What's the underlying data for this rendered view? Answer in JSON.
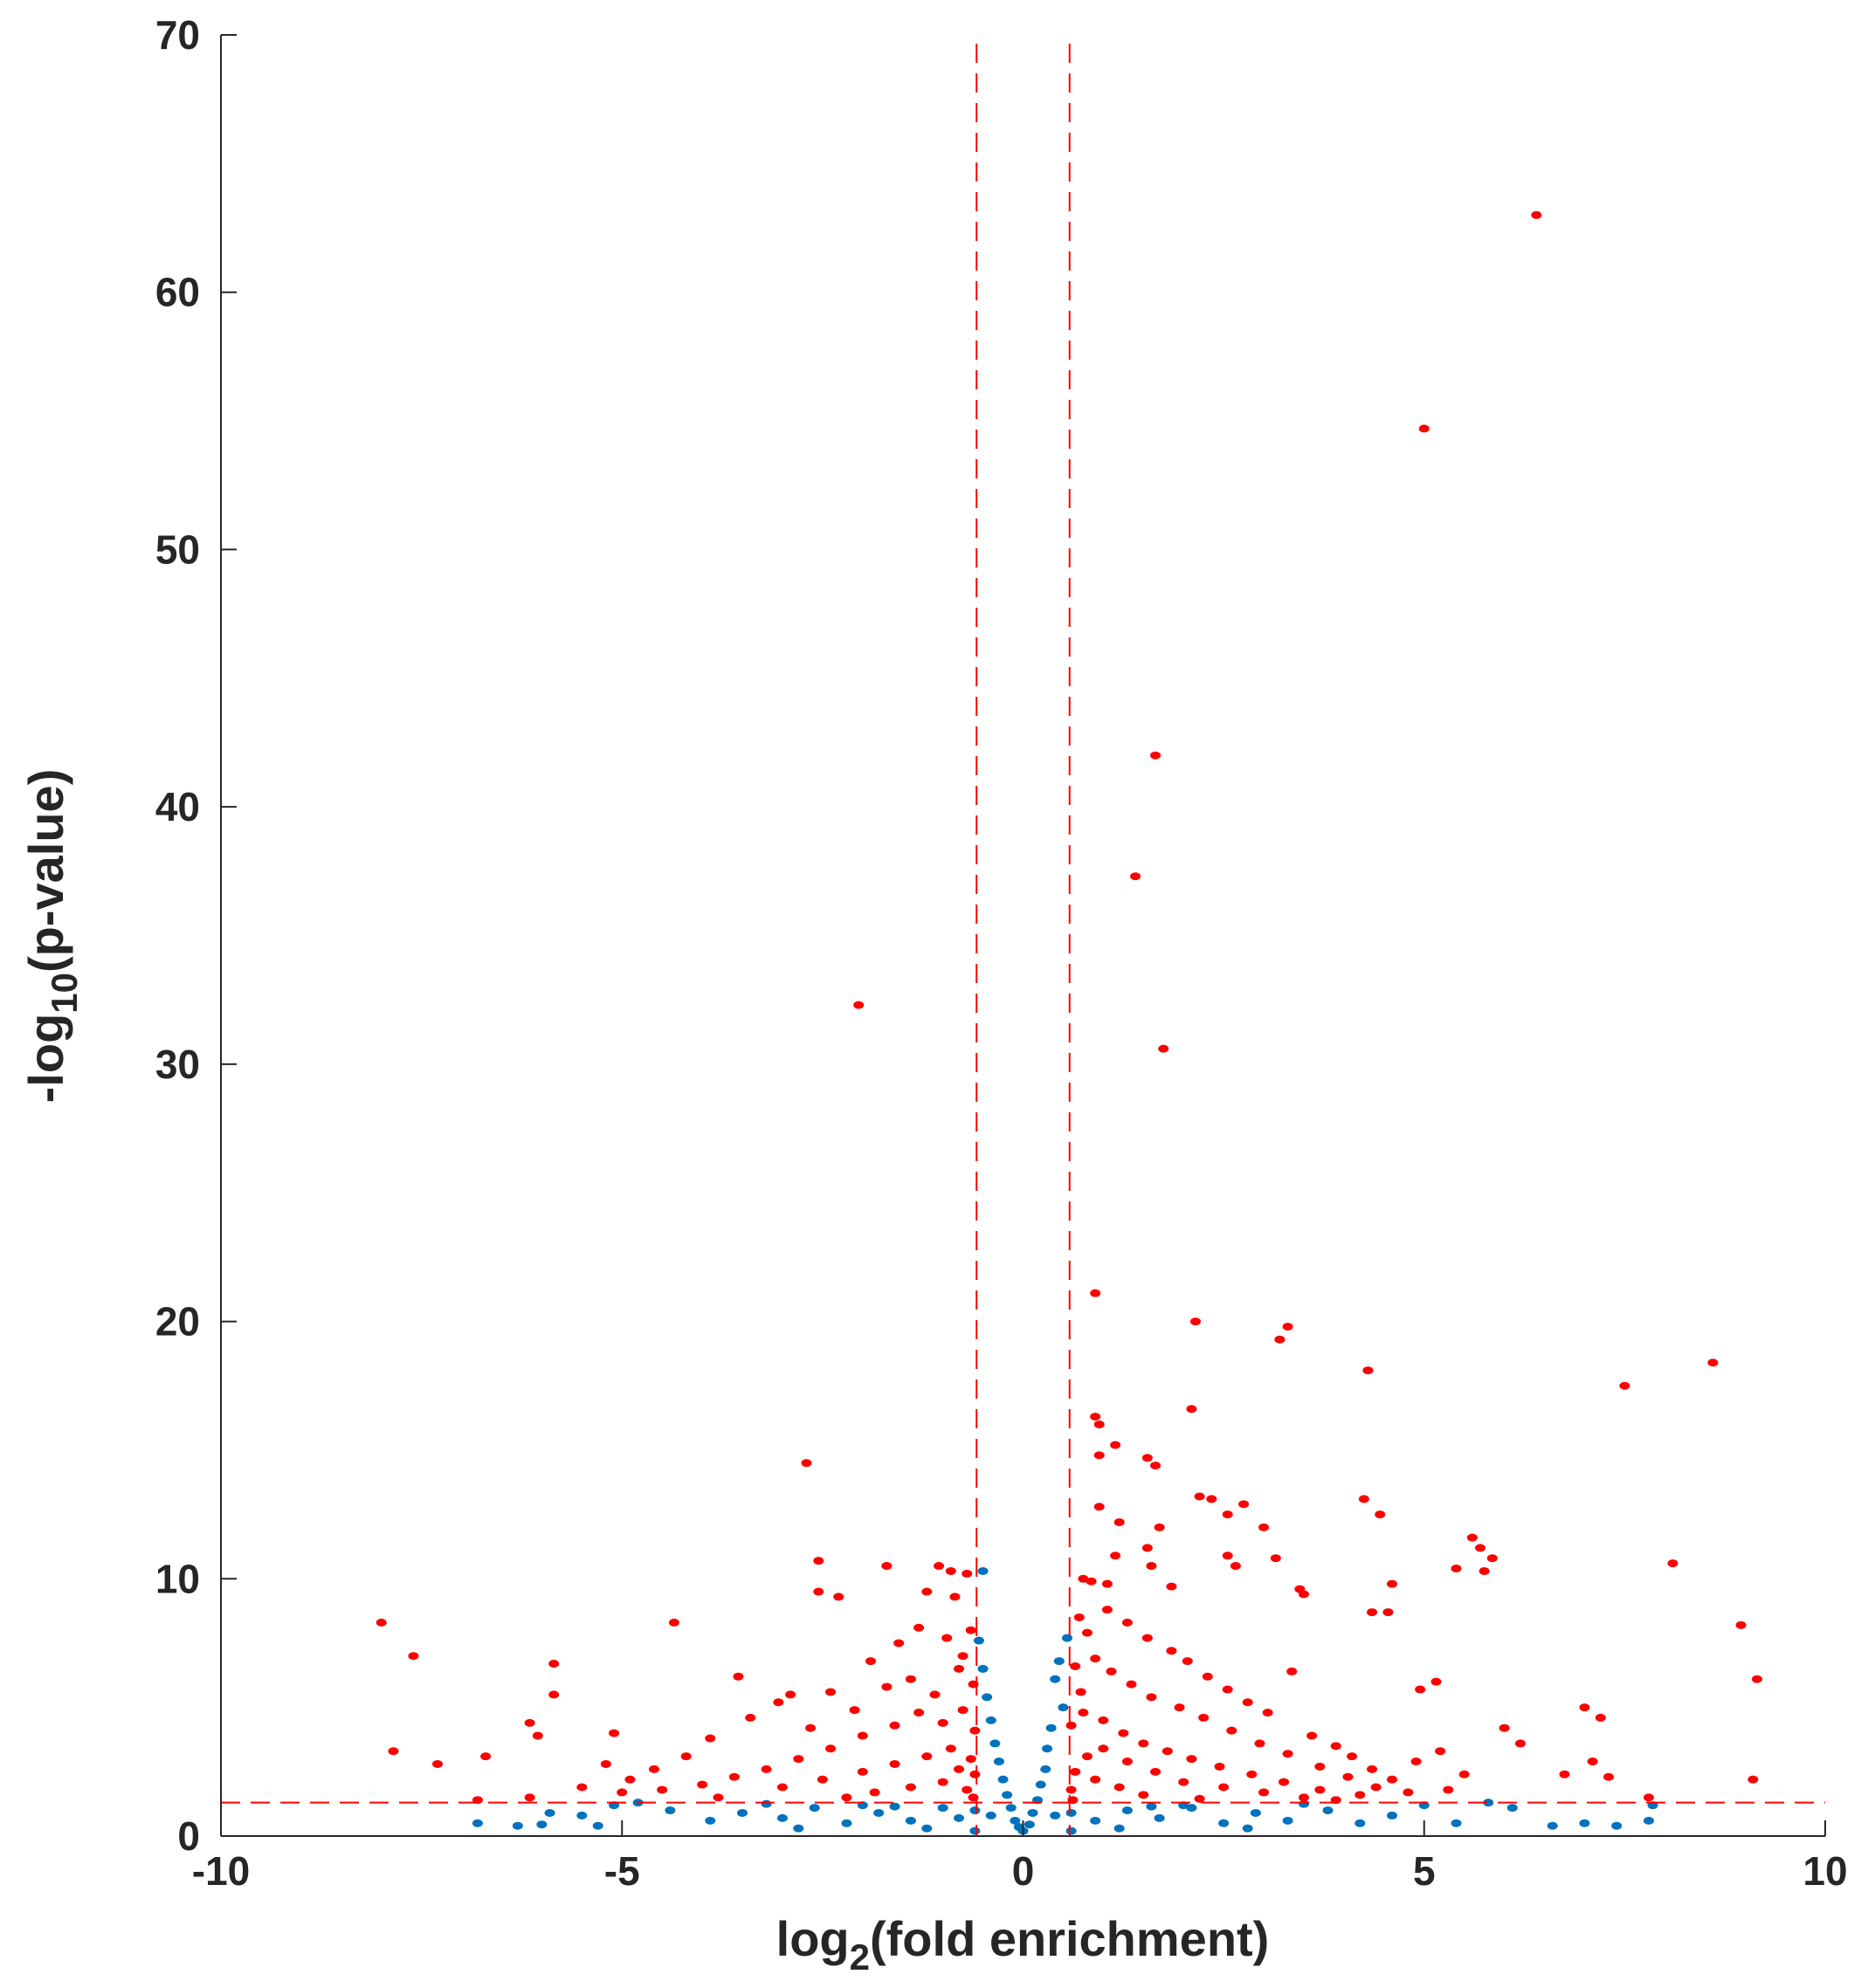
{
  "chart_data": {
    "type": "scatter",
    "title": "",
    "xlabel": {
      "main": "log",
      "sub": "2",
      "rest": "(fold enrichment)"
    },
    "ylabel": {
      "main": "-log",
      "sub": "10",
      "rest": "(p-value)"
    },
    "xlim": [
      -10,
      10
    ],
    "ylim": [
      0,
      70
    ],
    "x_ticks": [
      -10,
      -5,
      0,
      5,
      10
    ],
    "x_tick_labels": [
      "-10",
      "-5",
      "0",
      "5",
      "10"
    ],
    "y_ticks": [
      0,
      10,
      20,
      30,
      40,
      50,
      60,
      70
    ],
    "y_tick_labels": [
      "0",
      "10",
      "20",
      "30",
      "40",
      "50",
      "60",
      "70"
    ],
    "grid": false,
    "thresholds": {
      "x": [
        -0.58,
        0.58
      ],
      "y": [
        1.3
      ]
    },
    "colors": {
      "significant": "#ff0000",
      "not_significant": "#0072bd",
      "axis": "#262626"
    },
    "series": [
      {
        "color": "#ff0000",
        "points": [
          [
            6.4,
            63.0
          ],
          [
            5.0,
            54.7
          ],
          [
            1.65,
            42.0
          ],
          [
            1.4,
            37.3
          ],
          [
            -2.05,
            32.3
          ],
          [
            1.75,
            30.6
          ],
          [
            0.9,
            21.1
          ],
          [
            2.15,
            20.0
          ],
          [
            3.3,
            19.8
          ],
          [
            3.2,
            19.3
          ],
          [
            8.6,
            18.4
          ],
          [
            4.3,
            18.1
          ],
          [
            7.5,
            17.5
          ],
          [
            2.1,
            16.6
          ],
          [
            0.9,
            16.3
          ],
          [
            0.95,
            16.0
          ],
          [
            1.15,
            15.2
          ],
          [
            0.95,
            14.8
          ],
          [
            1.55,
            14.7
          ],
          [
            1.65,
            14.4
          ],
          [
            -2.7,
            14.5
          ],
          [
            2.2,
            13.2
          ],
          [
            2.35,
            13.1
          ],
          [
            4.25,
            13.1
          ],
          [
            2.75,
            12.9
          ],
          [
            0.95,
            12.8
          ],
          [
            2.55,
            12.5
          ],
          [
            4.45,
            12.5
          ],
          [
            1.2,
            12.2
          ],
          [
            1.7,
            12.0
          ],
          [
            3.0,
            12.0
          ],
          [
            5.6,
            11.6
          ],
          [
            5.7,
            11.2
          ],
          [
            5.85,
            10.8
          ],
          [
            5.75,
            10.3
          ],
          [
            5.4,
            10.4
          ],
          [
            8.1,
            10.6
          ],
          [
            3.15,
            10.8
          ],
          [
            2.55,
            10.9
          ],
          [
            2.65,
            10.5
          ],
          [
            1.55,
            11.2
          ],
          [
            1.6,
            10.5
          ],
          [
            1.15,
            10.9
          ],
          [
            -2.55,
            10.7
          ],
          [
            -1.7,
            10.5
          ],
          [
            -1.05,
            10.5
          ],
          [
            -0.9,
            10.3
          ],
          [
            -0.7,
            10.2
          ],
          [
            0.75,
            10.0
          ],
          [
            0.85,
            9.9
          ],
          [
            1.05,
            9.8
          ],
          [
            1.85,
            9.7
          ],
          [
            3.45,
            9.6
          ],
          [
            3.5,
            9.4
          ],
          [
            4.6,
            9.8
          ],
          [
            -2.55,
            9.5
          ],
          [
            -2.3,
            9.3
          ],
          [
            -1.2,
            9.5
          ],
          [
            -0.85,
            9.3
          ],
          [
            4.35,
            8.7
          ],
          [
            4.55,
            8.7
          ],
          [
            8.95,
            8.2
          ],
          [
            -8.0,
            8.3
          ],
          [
            -4.35,
            8.3
          ],
          [
            -7.6,
            7.0
          ],
          [
            9.15,
            6.1
          ],
          [
            5.15,
            6.0
          ],
          [
            4.95,
            5.7
          ],
          [
            -5.85,
            6.7
          ],
          [
            -5.85,
            5.5
          ],
          [
            -7.85,
            3.3
          ],
          [
            -7.3,
            2.8
          ],
          [
            -6.7,
            3.1
          ],
          [
            -6.15,
            4.4
          ],
          [
            -6.05,
            3.9
          ],
          [
            -5.1,
            4.0
          ],
          [
            -6.8,
            1.4
          ],
          [
            -6.15,
            1.5
          ],
          [
            7.0,
            5.0
          ],
          [
            7.2,
            4.6
          ],
          [
            6.0,
            4.2
          ],
          [
            6.2,
            3.6
          ],
          [
            7.1,
            2.9
          ],
          [
            7.3,
            2.3
          ],
          [
            7.8,
            1.5
          ],
          [
            9.1,
            2.2
          ],
          [
            6.75,
            2.4
          ],
          [
            -3.55,
            6.2
          ],
          [
            -3.05,
            5.2
          ],
          [
            -2.4,
            5.6
          ],
          [
            -1.9,
            6.8
          ],
          [
            -1.55,
            7.5
          ],
          [
            -1.3,
            8.1
          ],
          [
            -0.95,
            7.7
          ],
          [
            -0.75,
            7.0
          ],
          [
            -0.65,
            8.0
          ],
          [
            0.7,
            8.5
          ],
          [
            0.8,
            7.9
          ],
          [
            1.05,
            8.8
          ],
          [
            1.3,
            8.3
          ],
          [
            1.55,
            7.7
          ],
          [
            1.85,
            7.2
          ],
          [
            2.05,
            6.8
          ],
          [
            2.3,
            6.2
          ],
          [
            2.55,
            5.7
          ],
          [
            2.8,
            5.2
          ],
          [
            3.05,
            4.8
          ],
          [
            3.35,
            6.4
          ],
          [
            3.6,
            3.9
          ],
          [
            3.9,
            3.5
          ],
          [
            4.1,
            3.1
          ],
          [
            4.35,
            2.6
          ],
          [
            4.6,
            2.2
          ],
          [
            4.9,
            2.9
          ],
          [
            5.2,
            3.3
          ],
          [
            5.5,
            2.4
          ],
          [
            -3.9,
            3.8
          ],
          [
            -4.2,
            3.1
          ],
          [
            -4.6,
            2.6
          ],
          [
            -4.9,
            2.2
          ],
          [
            -5.2,
            2.8
          ],
          [
            -3.4,
            4.6
          ],
          [
            -2.9,
            5.5
          ],
          [
            -2.65,
            4.2
          ],
          [
            -2.1,
            4.9
          ],
          [
            -1.7,
            5.8
          ],
          [
            -1.4,
            6.1
          ],
          [
            -1.1,
            5.5
          ],
          [
            -0.8,
            6.5
          ],
          [
            -0.62,
            5.9
          ],
          [
            0.65,
            6.6
          ],
          [
            0.72,
            5.6
          ],
          [
            0.9,
            6.9
          ],
          [
            1.1,
            6.4
          ],
          [
            1.35,
            5.9
          ],
          [
            1.6,
            5.4
          ],
          [
            1.95,
            5.0
          ],
          [
            2.25,
            4.6
          ],
          [
            2.6,
            4.1
          ],
          [
            2.95,
            3.6
          ],
          [
            3.3,
            3.2
          ],
          [
            3.7,
            2.7
          ],
          [
            4.05,
            2.3
          ],
          [
            4.4,
            1.9
          ],
          [
            4.8,
            1.7
          ],
          [
            5.3,
            1.8
          ],
          [
            -5.5,
            1.9
          ],
          [
            -5.0,
            1.7
          ],
          [
            -4.5,
            1.8
          ],
          [
            -4.0,
            2.0
          ],
          [
            -3.6,
            2.3
          ],
          [
            -3.2,
            2.6
          ],
          [
            -2.8,
            3.0
          ],
          [
            -2.4,
            3.4
          ],
          [
            -2.0,
            3.9
          ],
          [
            -1.6,
            4.3
          ],
          [
            -1.3,
            4.8
          ],
          [
            -1.0,
            4.4
          ],
          [
            -0.75,
            4.9
          ],
          [
            -0.6,
            4.1
          ],
          [
            0.6,
            4.3
          ],
          [
            0.75,
            4.8
          ],
          [
            1.0,
            4.5
          ],
          [
            1.25,
            4.0
          ],
          [
            1.5,
            3.6
          ],
          [
            1.8,
            3.3
          ],
          [
            2.1,
            3.0
          ],
          [
            2.45,
            2.7
          ],
          [
            2.85,
            2.4
          ],
          [
            3.25,
            2.1
          ],
          [
            3.7,
            1.8
          ],
          [
            4.2,
            1.6
          ],
          [
            -3.0,
            1.9
          ],
          [
            -2.5,
            2.2
          ],
          [
            -2.0,
            2.5
          ],
          [
            -1.6,
            2.8
          ],
          [
            -1.2,
            3.1
          ],
          [
            -0.9,
            3.4
          ],
          [
            -0.65,
            3.0
          ],
          [
            -0.6,
            2.4
          ],
          [
            -0.7,
            1.8
          ],
          [
            0.6,
            1.8
          ],
          [
            0.65,
            2.5
          ],
          [
            0.8,
            3.1
          ],
          [
            1.0,
            3.4
          ],
          [
            1.3,
            2.9
          ],
          [
            1.65,
            2.5
          ],
          [
            2.0,
            2.1
          ],
          [
            2.5,
            1.9
          ],
          [
            3.0,
            1.7
          ],
          [
            3.5,
            1.5
          ],
          [
            -1.85,
            1.7
          ],
          [
            -1.4,
            1.9
          ],
          [
            -1.0,
            2.1
          ],
          [
            -0.8,
            2.6
          ],
          [
            0.9,
            2.2
          ],
          [
            1.2,
            1.9
          ],
          [
            1.5,
            1.6
          ],
          [
            -0.62,
            1.5
          ],
          [
            0.62,
            1.4
          ],
          [
            -2.2,
            1.5
          ],
          [
            2.2,
            1.45
          ],
          [
            -3.8,
            1.5
          ],
          [
            3.9,
            1.4
          ]
        ]
      },
      {
        "color": "#0072bd",
        "points": [
          [
            -0.5,
            10.3
          ],
          [
            -0.55,
            7.6
          ],
          [
            0.55,
            7.7
          ],
          [
            -0.5,
            6.5
          ],
          [
            0.45,
            6.8
          ],
          [
            0.4,
            6.1
          ],
          [
            -0.45,
            5.4
          ],
          [
            0.5,
            5.0
          ],
          [
            -0.4,
            4.5
          ],
          [
            0.35,
            4.2
          ],
          [
            -0.35,
            3.6
          ],
          [
            0.3,
            3.4
          ],
          [
            -0.3,
            2.9
          ],
          [
            0.28,
            2.6
          ],
          [
            -0.25,
            2.2
          ],
          [
            0.22,
            2.0
          ],
          [
            -0.2,
            1.6
          ],
          [
            0.18,
            1.4
          ],
          [
            -0.15,
            1.1
          ],
          [
            0.12,
            0.9
          ],
          [
            -0.1,
            0.6
          ],
          [
            0.08,
            0.45
          ],
          [
            0.0,
            0.2
          ],
          [
            -0.05,
            0.35
          ],
          [
            -6.8,
            0.5
          ],
          [
            -6.3,
            0.4
          ],
          [
            -6.0,
            0.45
          ],
          [
            -5.9,
            0.9
          ],
          [
            -5.3,
            0.4
          ],
          [
            -5.1,
            1.2
          ],
          [
            -4.4,
            1.0
          ],
          [
            -3.9,
            0.6
          ],
          [
            -3.5,
            0.9
          ],
          [
            -3.0,
            0.7
          ],
          [
            -2.6,
            1.1
          ],
          [
            -2.2,
            0.5
          ],
          [
            -1.8,
            0.9
          ],
          [
            -1.4,
            0.6
          ],
          [
            -1.0,
            1.1
          ],
          [
            -0.8,
            0.7
          ],
          [
            -0.6,
            1.0
          ],
          [
            0.6,
            0.9
          ],
          [
            0.9,
            0.6
          ],
          [
            1.3,
            1.0
          ],
          [
            1.7,
            0.7
          ],
          [
            2.1,
            1.1
          ],
          [
            2.5,
            0.5
          ],
          [
            2.9,
            0.9
          ],
          [
            3.3,
            0.6
          ],
          [
            3.8,
            1.0
          ],
          [
            4.2,
            0.5
          ],
          [
            4.6,
            0.8
          ],
          [
            5.0,
            1.2
          ],
          [
            5.4,
            0.5
          ],
          [
            5.8,
            1.3
          ],
          [
            6.1,
            1.1
          ],
          [
            6.6,
            0.4
          ],
          [
            7.0,
            0.5
          ],
          [
            7.4,
            0.4
          ],
          [
            7.8,
            0.6
          ],
          [
            7.85,
            1.2
          ],
          [
            -4.8,
            1.3
          ],
          [
            -5.5,
            0.8
          ],
          [
            -3.2,
            1.25
          ],
          [
            3.5,
            1.25
          ],
          [
            -2.0,
            1.2
          ],
          [
            2.0,
            1.2
          ],
          [
            -1.2,
            0.3
          ],
          [
            1.2,
            0.3
          ],
          [
            -0.4,
            0.8
          ],
          [
            0.4,
            0.8
          ],
          [
            -0.6,
            0.2
          ],
          [
            0.6,
            0.2
          ],
          [
            -1.6,
            1.15
          ],
          [
            1.6,
            1.15
          ],
          [
            -2.8,
            0.3
          ],
          [
            2.8,
            0.3
          ]
        ]
      }
    ]
  }
}
